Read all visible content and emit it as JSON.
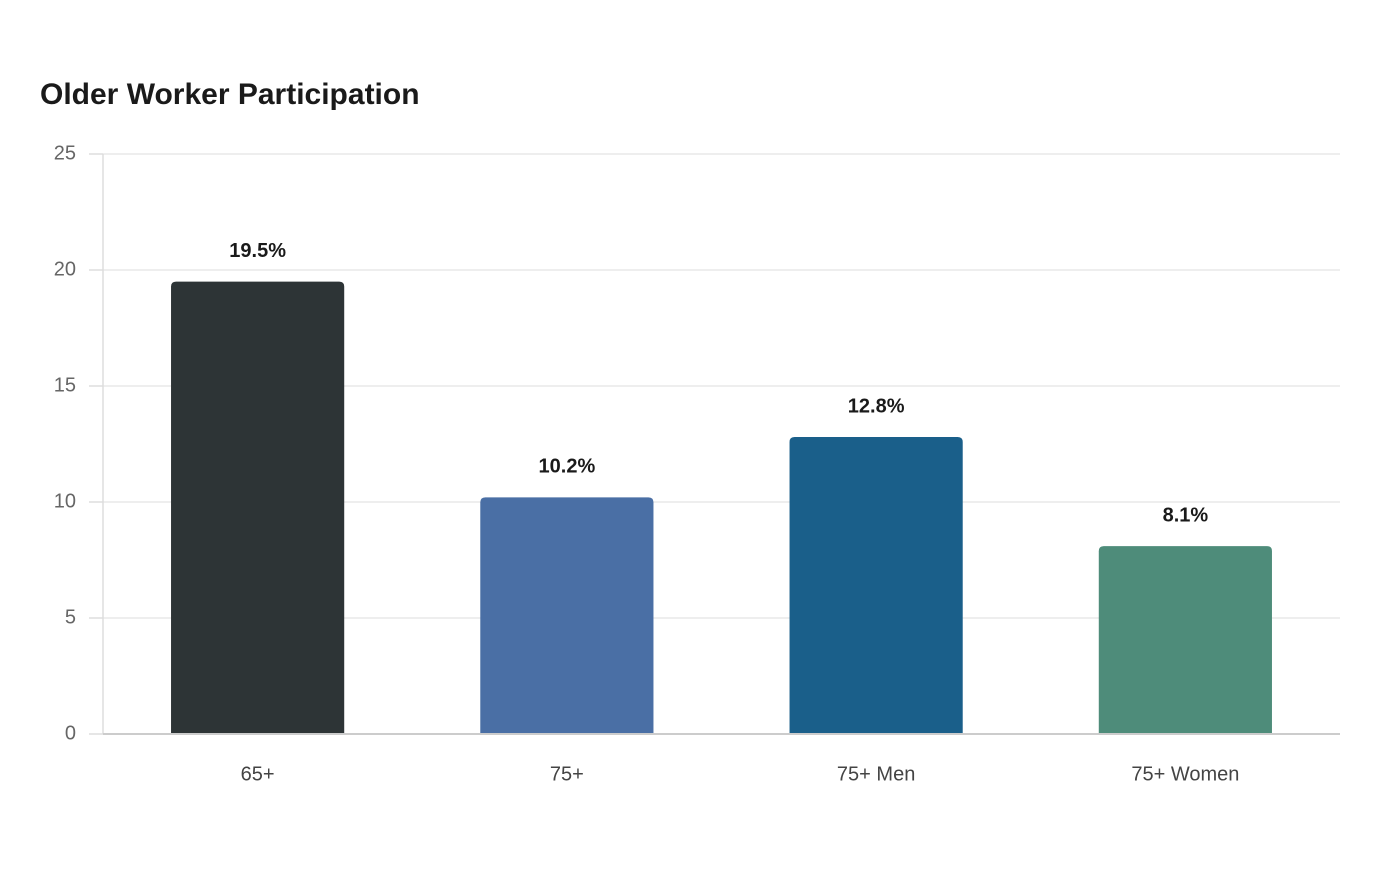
{
  "chart_data": {
    "type": "bar",
    "title": "Older Worker Participation",
    "categories": [
      "65+",
      "75+",
      "75+ Men",
      "75+ Women"
    ],
    "values": [
      19.5,
      10.2,
      12.8,
      8.1
    ],
    "value_labels": [
      "19.5%",
      "10.2%",
      "12.8%",
      "8.1%"
    ],
    "colors": [
      "#2d3436",
      "#4a6fa5",
      "#1a5f8a",
      "#4e8c7a"
    ],
    "ylim": [
      0,
      25
    ],
    "yticks": [
      0,
      5,
      10,
      15,
      20,
      25
    ],
    "grid": true
  }
}
